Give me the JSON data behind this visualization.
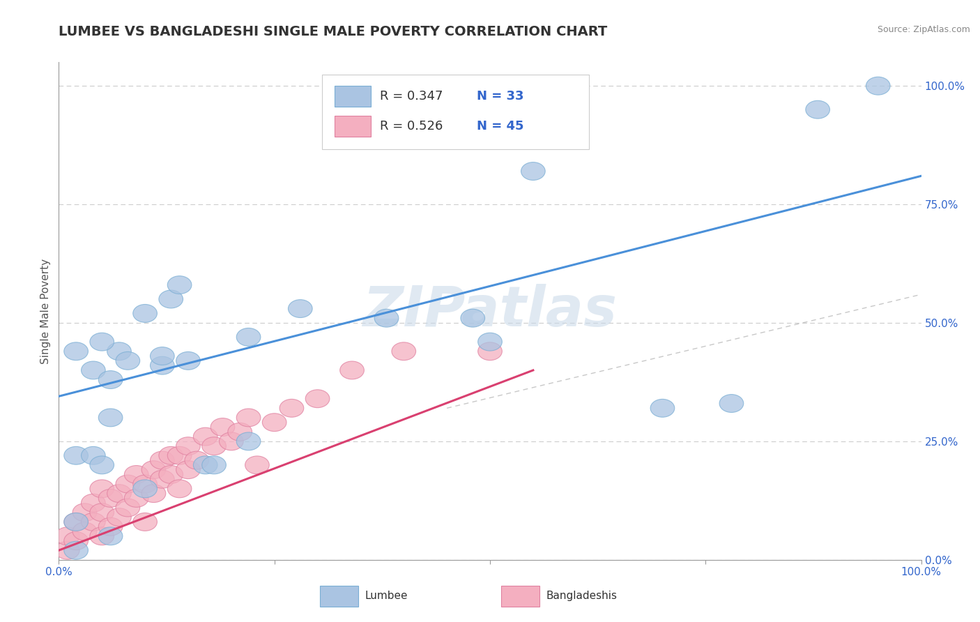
{
  "title": "LUMBEE VS BANGLADESHI SINGLE MALE POVERTY CORRELATION CHART",
  "source": "Source: ZipAtlas.com",
  "ylabel": "Single Male Poverty",
  "watermark": "ZIPatlas",
  "lumbee_R": 0.347,
  "lumbee_N": 33,
  "bangladeshi_R": 0.526,
  "bangladeshi_N": 45,
  "lumbee_color": "#aac4e2",
  "lumbee_edge_color": "#7aaed4",
  "bangladeshi_color": "#f4afc0",
  "bangladeshi_edge_color": "#e080a0",
  "lumbee_line_color": "#4a90d9",
  "bangladeshi_line_color": "#d94070",
  "ref_line_color": "#c8c8c8",
  "lumbee_x": [
    0.02,
    0.04,
    0.13,
    0.14,
    0.04,
    0.06,
    0.07,
    0.02,
    0.05,
    0.12,
    0.15,
    0.17,
    0.06,
    0.1,
    0.22,
    0.28,
    0.48,
    0.5,
    0.55,
    0.7,
    0.78,
    0.95,
    0.02,
    0.05,
    0.08,
    0.12,
    0.22,
    0.02,
    0.06,
    0.1,
    0.18,
    0.88,
    0.38
  ],
  "lumbee_y": [
    0.22,
    0.22,
    0.55,
    0.58,
    0.4,
    0.38,
    0.44,
    0.44,
    0.46,
    0.41,
    0.42,
    0.2,
    0.3,
    0.52,
    0.47,
    0.53,
    0.51,
    0.46,
    0.82,
    0.32,
    0.33,
    1.0,
    0.08,
    0.2,
    0.42,
    0.43,
    0.25,
    0.02,
    0.05,
    0.15,
    0.2,
    0.95,
    0.51
  ],
  "bangladeshi_x": [
    0.01,
    0.01,
    0.02,
    0.02,
    0.03,
    0.03,
    0.04,
    0.04,
    0.05,
    0.05,
    0.05,
    0.06,
    0.06,
    0.07,
    0.07,
    0.08,
    0.08,
    0.09,
    0.09,
    0.1,
    0.1,
    0.11,
    0.11,
    0.12,
    0.12,
    0.13,
    0.13,
    0.14,
    0.14,
    0.15,
    0.15,
    0.16,
    0.17,
    0.18,
    0.19,
    0.2,
    0.21,
    0.22,
    0.23,
    0.25,
    0.27,
    0.3,
    0.34,
    0.4,
    0.5
  ],
  "bangladeshi_y": [
    0.02,
    0.05,
    0.04,
    0.08,
    0.06,
    0.1,
    0.08,
    0.12,
    0.05,
    0.1,
    0.15,
    0.07,
    0.13,
    0.09,
    0.14,
    0.11,
    0.16,
    0.13,
    0.18,
    0.08,
    0.16,
    0.14,
    0.19,
    0.17,
    0.21,
    0.22,
    0.18,
    0.15,
    0.22,
    0.19,
    0.24,
    0.21,
    0.26,
    0.24,
    0.28,
    0.25,
    0.27,
    0.3,
    0.2,
    0.29,
    0.32,
    0.34,
    0.4,
    0.44,
    0.44
  ],
  "lumbee_line_x": [
    0.0,
    1.0
  ],
  "lumbee_line_y": [
    0.345,
    0.81
  ],
  "bangladeshi_line_x": [
    0.0,
    0.55
  ],
  "bangladeshi_line_y": [
    0.02,
    0.4
  ],
  "ref_line_x": [
    0.45,
    1.0
  ],
  "ref_line_y": [
    0.32,
    0.56
  ],
  "yticks": [
    0.0,
    0.25,
    0.5,
    0.75,
    1.0
  ],
  "ytick_labels": [
    "0.0%",
    "25.0%",
    "50.0%",
    "75.0%",
    "100.0%"
  ],
  "xticks": [
    0.0,
    0.25,
    0.5,
    0.75,
    1.0
  ],
  "xtick_labels": [
    "0.0%",
    "",
    "",
    "",
    "100.0%"
  ],
  "title_fontsize": 14,
  "axis_label_fontsize": 11,
  "tick_fontsize": 11,
  "legend_fontsize": 13
}
